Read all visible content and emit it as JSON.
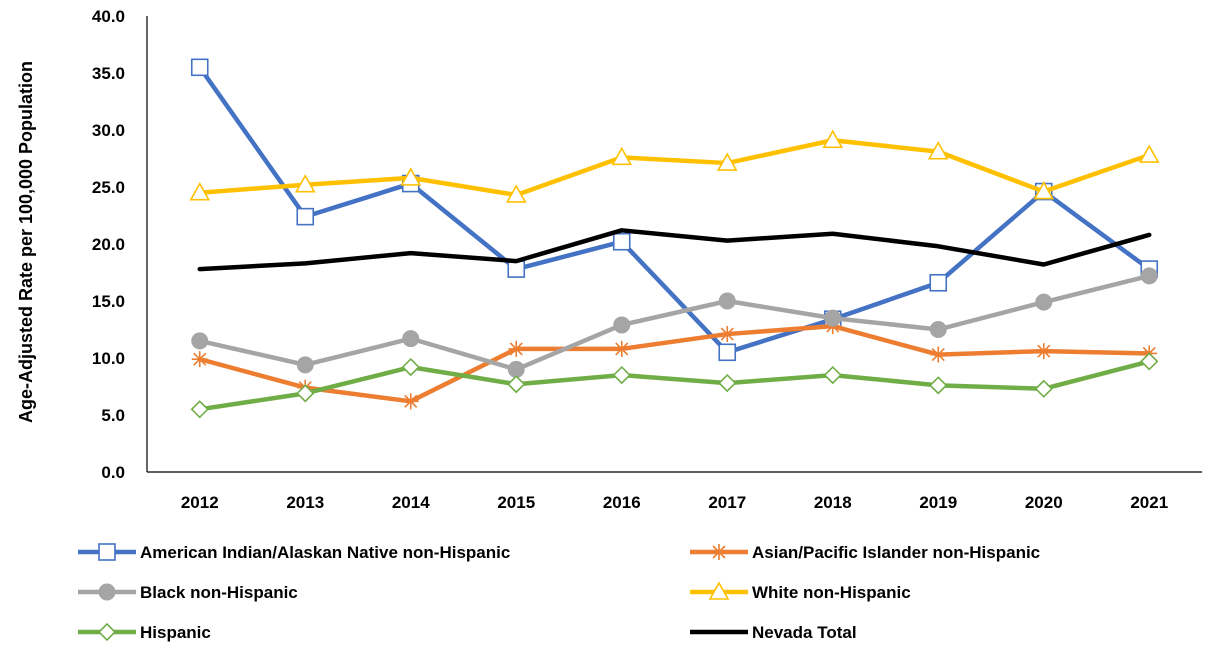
{
  "chart_data": {
    "type": "line",
    "title": "",
    "xlabel": "",
    "ylabel": "Age-Adjusted Rate per 100,000 Population",
    "ylim": [
      0,
      40
    ],
    "yticks": [
      "0.0",
      "5.0",
      "10.0",
      "15.0",
      "20.0",
      "25.0",
      "30.0",
      "35.0",
      "40.0"
    ],
    "categories": [
      "2012",
      "2013",
      "2014",
      "2015",
      "2016",
      "2017",
      "2018",
      "2019",
      "2020",
      "2021"
    ],
    "grid": false,
    "legend_position": "bottom",
    "series": [
      {
        "name": "American Indian/Alaskan Native non-Hispanic",
        "color": "#4472C4",
        "marker": "square",
        "values": [
          35.5,
          22.4,
          25.3,
          17.8,
          20.2,
          10.5,
          13.4,
          16.6,
          24.6,
          17.8
        ]
      },
      {
        "name": "Asian/Pacific Islander non-Hispanic",
        "color": "#ED7D31",
        "marker": "asterisk",
        "values": [
          9.9,
          7.4,
          6.2,
          10.8,
          10.8,
          12.1,
          12.8,
          10.3,
          10.6,
          10.4
        ]
      },
      {
        "name": "Black non-Hispanic",
        "color": "#A5A5A5",
        "marker": "circle",
        "values": [
          11.5,
          9.4,
          11.7,
          9.0,
          12.9,
          15.0,
          13.5,
          12.5,
          14.9,
          17.2
        ]
      },
      {
        "name": "White non-Hispanic",
        "color": "#FFC000",
        "marker": "triangle",
        "values": [
          24.5,
          25.2,
          25.8,
          24.3,
          27.6,
          27.1,
          29.1,
          28.1,
          24.6,
          27.8
        ]
      },
      {
        "name": "Hispanic",
        "color": "#70AD47",
        "marker": "diamond",
        "values": [
          5.5,
          6.9,
          9.2,
          7.7,
          8.5,
          7.8,
          8.5,
          7.6,
          7.3,
          9.7
        ]
      },
      {
        "name": "Nevada Total",
        "color": "#000000",
        "marker": "none",
        "values": [
          17.8,
          18.3,
          19.2,
          18.5,
          21.2,
          20.3,
          20.9,
          19.8,
          18.2,
          20.8
        ]
      }
    ]
  }
}
